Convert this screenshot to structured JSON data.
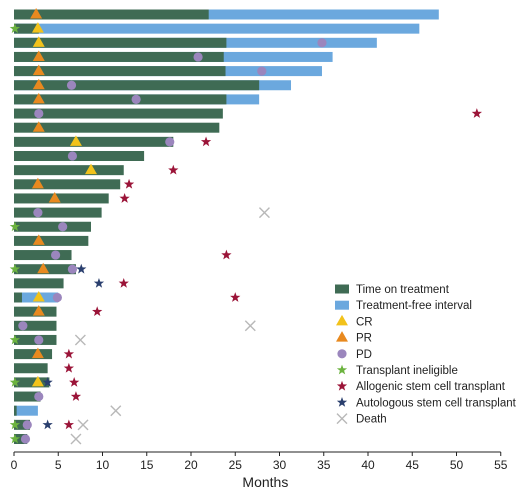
{
  "chart_data": {
    "type": "bar",
    "orientation": "horizontal-swimmer",
    "xlabel": "Months",
    "xlim": [
      0,
      55
    ],
    "xticks": [
      "0",
      "5",
      "10",
      "15",
      "20",
      "25",
      "30",
      "35",
      "40",
      "45",
      "50",
      "55"
    ],
    "colors": {
      "treatment": "#3f6b54",
      "treatment_free": "#6ba8de",
      "CR": "#f2c21b",
      "PR": "#e8891f",
      "PD": "#9b86bd",
      "transplant_ineligible": "#6cb33f",
      "allogeneic": "#9b1438",
      "autologous": "#2a3f6e",
      "death": "#b8b8b8"
    },
    "legend": [
      {
        "key": "treatment",
        "shape": "rect",
        "label": "Time on treatment"
      },
      {
        "key": "treatment_free",
        "shape": "rect",
        "label": "Treatment-free interval"
      },
      {
        "key": "CR",
        "shape": "triangle",
        "label": "CR"
      },
      {
        "key": "PR",
        "shape": "triangle",
        "label": "PR"
      },
      {
        "key": "PD",
        "shape": "circle",
        "label": "PD"
      },
      {
        "key": "transplant_ineligible",
        "shape": "star",
        "label": "Transplant ineligible"
      },
      {
        "key": "allogeneic",
        "shape": "star",
        "label": "Allogenic stem cell transplant"
      },
      {
        "key": "autologous",
        "shape": "star",
        "label": "Autologous stem cell transplant"
      },
      {
        "key": "death",
        "shape": "x",
        "label": "Death"
      }
    ],
    "patients": [
      {
        "treatment": 22.0,
        "total": 48.0,
        "events": [
          {
            "type": "PR",
            "x": 2.5
          }
        ]
      },
      {
        "treatment": 2.8,
        "total": 45.8,
        "events": [
          {
            "type": "transplant_ineligible",
            "x": 0.1
          },
          {
            "type": "CR",
            "x": 2.7
          }
        ]
      },
      {
        "treatment": 24.0,
        "total": 41.0,
        "events": [
          {
            "type": "CR",
            "x": 2.8
          },
          {
            "type": "PD",
            "x": 34.8
          }
        ]
      },
      {
        "treatment": 23.7,
        "total": 36.0,
        "events": [
          {
            "type": "PR",
            "x": 2.8
          },
          {
            "type": "PD",
            "x": 20.8
          }
        ]
      },
      {
        "treatment": 23.9,
        "total": 34.8,
        "events": [
          {
            "type": "PR",
            "x": 2.8
          },
          {
            "type": "PD",
            "x": 28.0
          }
        ]
      },
      {
        "treatment": 27.7,
        "total": 31.3,
        "events": [
          {
            "type": "PR",
            "x": 2.8
          },
          {
            "type": "PD",
            "x": 6.5
          }
        ]
      },
      {
        "treatment": 24.0,
        "total": 27.7,
        "events": [
          {
            "type": "PR",
            "x": 2.8
          },
          {
            "type": "PD",
            "x": 13.8
          }
        ]
      },
      {
        "treatment": 23.6,
        "total": 23.6,
        "events": [
          {
            "type": "PD",
            "x": 2.8
          },
          {
            "type": "allogeneic",
            "x": 52.3
          }
        ]
      },
      {
        "treatment": 23.2,
        "total": 23.2,
        "events": [
          {
            "type": "PR",
            "x": 2.8
          }
        ]
      },
      {
        "treatment": 18.0,
        "total": 18.0,
        "events": [
          {
            "type": "CR",
            "x": 7.0
          },
          {
            "type": "PD",
            "x": 17.6
          },
          {
            "type": "allogeneic",
            "x": 21.7
          }
        ]
      },
      {
        "treatment": 14.7,
        "total": 14.7,
        "events": [
          {
            "type": "PD",
            "x": 6.6
          }
        ]
      },
      {
        "treatment": 12.4,
        "total": 12.4,
        "events": [
          {
            "type": "CR",
            "x": 8.7
          },
          {
            "type": "allogeneic",
            "x": 18.0
          }
        ]
      },
      {
        "treatment": 12.0,
        "total": 12.0,
        "events": [
          {
            "type": "PR",
            "x": 2.7
          },
          {
            "type": "allogeneic",
            "x": 13.0
          }
        ]
      },
      {
        "treatment": 10.7,
        "total": 10.7,
        "events": [
          {
            "type": "PR",
            "x": 4.6
          },
          {
            "type": "allogeneic",
            "x": 12.5
          }
        ]
      },
      {
        "treatment": 9.9,
        "total": 9.9,
        "events": [
          {
            "type": "PD",
            "x": 2.7
          },
          {
            "type": "death",
            "x": 28.3
          }
        ]
      },
      {
        "treatment": 8.7,
        "total": 8.7,
        "events": [
          {
            "type": "transplant_ineligible",
            "x": 0.1
          },
          {
            "type": "PD",
            "x": 5.5
          }
        ]
      },
      {
        "treatment": 8.4,
        "total": 8.4,
        "events": [
          {
            "type": "PR",
            "x": 2.8
          }
        ]
      },
      {
        "treatment": 6.5,
        "total": 6.5,
        "events": [
          {
            "type": "PD",
            "x": 4.7
          },
          {
            "type": "allogeneic",
            "x": 24.0
          }
        ]
      },
      {
        "treatment": 7.0,
        "total": 7.0,
        "events": [
          {
            "type": "transplant_ineligible",
            "x": 0.1
          },
          {
            "type": "PR",
            "x": 3.3
          },
          {
            "type": "PD",
            "x": 6.6
          },
          {
            "type": "autologous",
            "x": 7.6
          }
        ]
      },
      {
        "treatment": 5.6,
        "total": 5.6,
        "events": [
          {
            "type": "autologous",
            "x": 9.6
          },
          {
            "type": "allogeneic",
            "x": 12.4
          }
        ]
      },
      {
        "treatment": 0.9,
        "total": 5.0,
        "events": [
          {
            "type": "CR",
            "x": 2.8
          },
          {
            "type": "PD",
            "x": 4.9
          },
          {
            "type": "allogeneic",
            "x": 25.0
          }
        ]
      },
      {
        "treatment": 4.8,
        "total": 4.8,
        "events": [
          {
            "type": "PR",
            "x": 2.8
          },
          {
            "type": "allogeneic",
            "x": 9.4
          }
        ]
      },
      {
        "treatment": 4.8,
        "total": 4.8,
        "events": [
          {
            "type": "PD",
            "x": 1.0
          },
          {
            "type": "death",
            "x": 26.7
          }
        ]
      },
      {
        "treatment": 4.8,
        "total": 4.8,
        "events": [
          {
            "type": "transplant_ineligible",
            "x": 0.1
          },
          {
            "type": "PD",
            "x": 2.8
          },
          {
            "type": "death",
            "x": 7.5
          }
        ]
      },
      {
        "treatment": 4.3,
        "total": 4.3,
        "events": [
          {
            "type": "PR",
            "x": 2.7
          },
          {
            "type": "allogeneic",
            "x": 6.2
          }
        ]
      },
      {
        "treatment": 3.8,
        "total": 3.8,
        "events": [
          {
            "type": "allogeneic",
            "x": 6.2
          }
        ]
      },
      {
        "treatment": 4.0,
        "total": 4.0,
        "events": [
          {
            "type": "transplant_ineligible",
            "x": 0.1
          },
          {
            "type": "CR",
            "x": 2.7
          },
          {
            "type": "autologous",
            "x": 3.8
          },
          {
            "type": "allogeneic",
            "x": 6.8
          }
        ]
      },
      {
        "treatment": 3.0,
        "total": 3.0,
        "events": [
          {
            "type": "PD",
            "x": 2.8
          },
          {
            "type": "allogeneic",
            "x": 7.0
          }
        ]
      },
      {
        "treatment": 0.3,
        "total": 2.7,
        "events": [
          {
            "type": "death",
            "x": 11.5
          }
        ]
      },
      {
        "treatment": 1.8,
        "total": 1.8,
        "events": [
          {
            "type": "transplant_ineligible",
            "x": 0.1
          },
          {
            "type": "PD",
            "x": 1.5
          },
          {
            "type": "autologous",
            "x": 3.8
          },
          {
            "type": "allogeneic",
            "x": 6.2
          },
          {
            "type": "death",
            "x": 7.8
          }
        ]
      },
      {
        "treatment": 1.5,
        "total": 1.5,
        "events": [
          {
            "type": "transplant_ineligible",
            "x": 0.1
          },
          {
            "type": "PD",
            "x": 1.3
          },
          {
            "type": "death",
            "x": 7.0
          }
        ]
      }
    ]
  }
}
